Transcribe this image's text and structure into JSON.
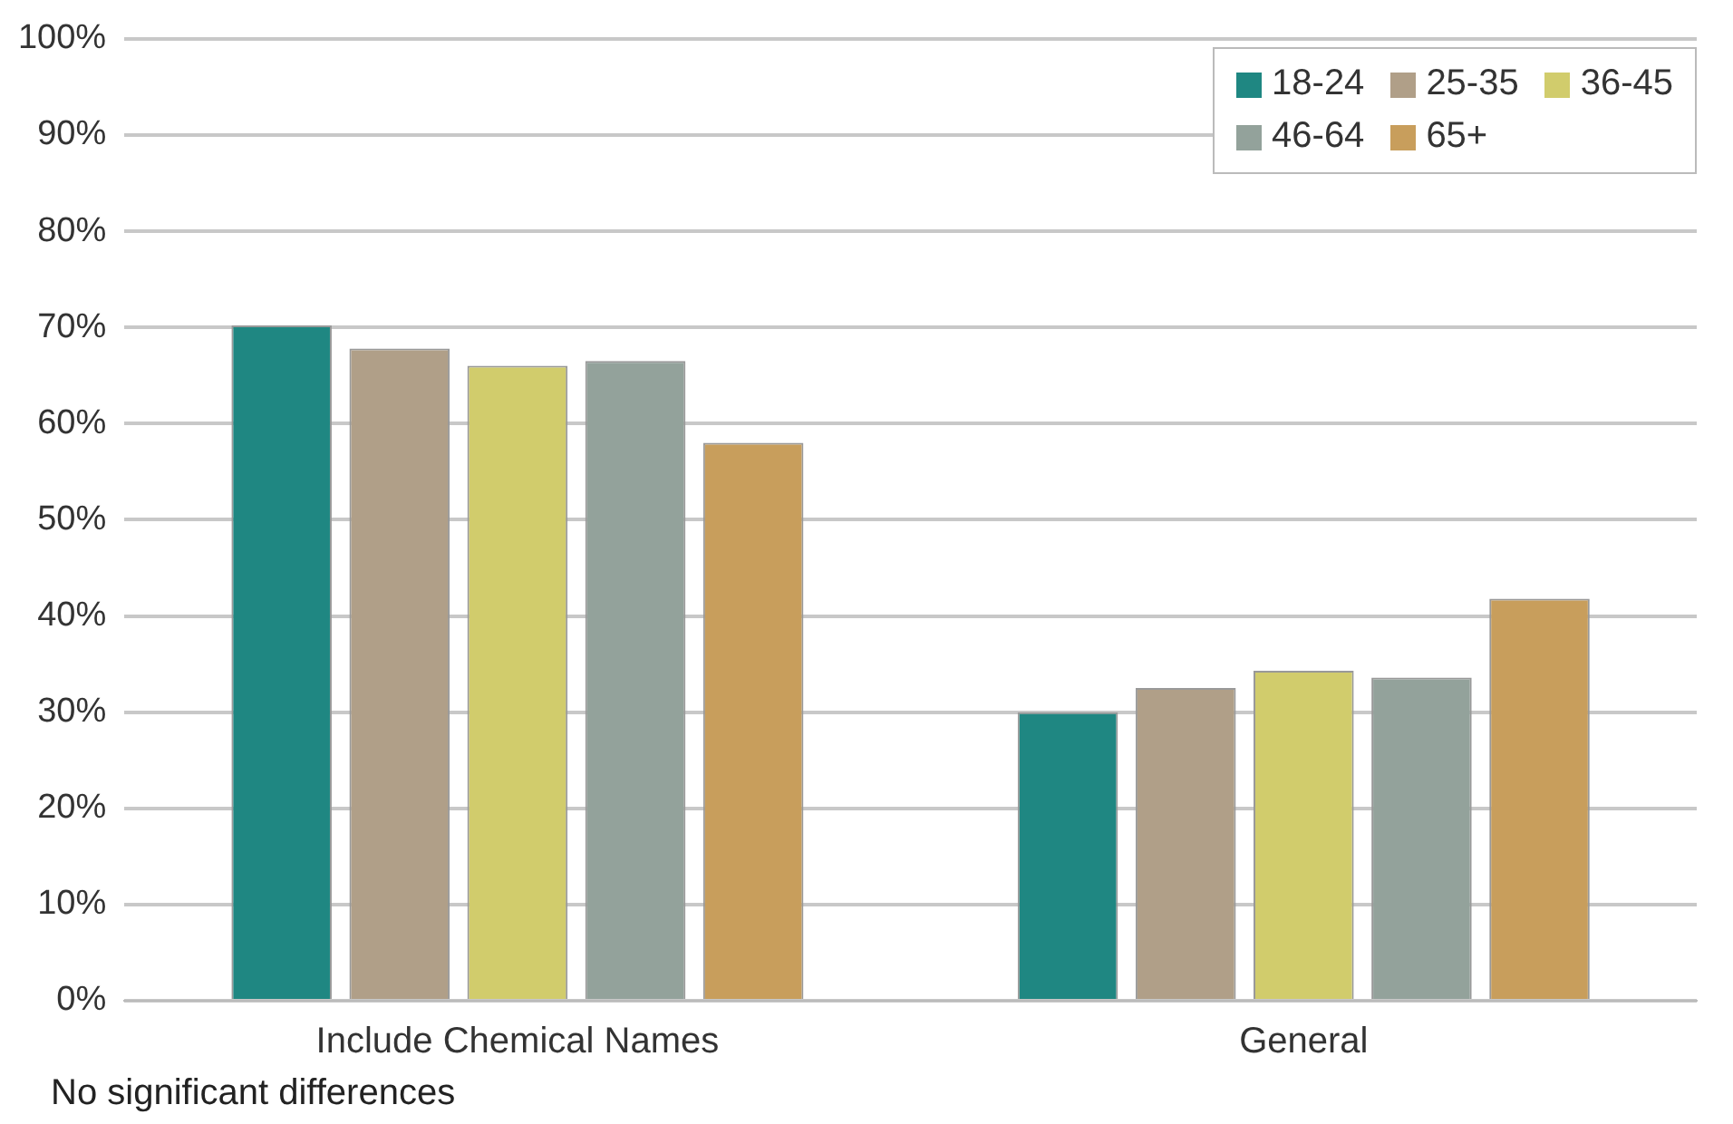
{
  "chart_data": {
    "type": "bar",
    "categories": [
      "Include Chemical Names",
      "General"
    ],
    "series": [
      {
        "name": "18-24",
        "color": "#1f8782",
        "values": [
          70.2,
          30
        ]
      },
      {
        "name": "25-35",
        "color": "#b09f88",
        "values": [
          67.8,
          32.5
        ]
      },
      {
        "name": "36-45",
        "color": "#d1cc6c",
        "values": [
          66,
          34.3
        ]
      },
      {
        "name": "46-64",
        "color": "#93a29b",
        "values": [
          66.5,
          33.6
        ]
      },
      {
        "name": "65+",
        "color": "#c89e5c",
        "values": [
          58,
          41.8
        ]
      }
    ],
    "ylim": [
      0,
      100
    ],
    "yticks": [
      {
        "value": 0,
        "label": "0%"
      },
      {
        "value": 10,
        "label": "10%"
      },
      {
        "value": 20,
        "label": "20%"
      },
      {
        "value": 30,
        "label": "30%"
      },
      {
        "value": 40,
        "label": "40%"
      },
      {
        "value": 50,
        "label": "50%"
      },
      {
        "value": 60,
        "label": "60%"
      },
      {
        "value": 70,
        "label": "70%"
      },
      {
        "value": 80,
        "label": "80%"
      },
      {
        "value": 90,
        "label": "90%"
      },
      {
        "value": 100,
        "label": "100%"
      }
    ],
    "grid": "y",
    "legend": "top right",
    "annotations": [
      "No significant differences"
    ]
  }
}
